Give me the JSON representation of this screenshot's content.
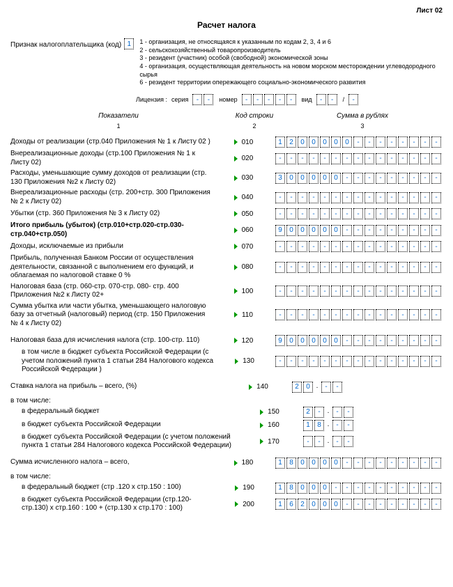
{
  "sheet_label": "Лист 02",
  "title": "Расчет налога",
  "taxpayer_label": "Признак налогоплательщика (код)",
  "taxpayer_code": "1",
  "legend": [
    "1 - организация, не относящаяся к указанным по кодам 2, 3, 4 и 6",
    "2 - сельскохозяйственный товаропроизводитель",
    "3 - резидент (участник) особой (свободной) экономической зоны",
    "4 - организация, осуществляющая деятельность на новом морском месторождении углеводородного сырья",
    "6 - резидент территории опережающего социально-экономического развития"
  ],
  "license": {
    "label": "Лицензия :",
    "series": "серия",
    "number": "номер",
    "kind": "вид"
  },
  "col_headers": {
    "c1": "Показатели",
    "c2": "Код строки",
    "c3": "Сумма в рублях"
  },
  "col_nums": {
    "c1": "1",
    "c2": "2",
    "c3": "3"
  },
  "rows": [
    {
      "label": "Доходы от реализации (стр.040 Приложения № 1 к Листу 02 )",
      "code": "010",
      "value": "1200000",
      "cells": 15
    },
    {
      "label": "Внереализационные доходы (стр.100 Приложения № 1 к Листу 02)",
      "code": "020",
      "value": "",
      "cells": 15
    },
    {
      "label": "Расходы, уменьшающие сумму доходов от реализации (стр. 130 Приложения №2 к Листу 02)",
      "code": "030",
      "value": "300000",
      "cells": 15
    },
    {
      "label": "Внереализационные расходы (стр. 200+стр. 300 Приложения № 2 к Листу 02)",
      "code": "040",
      "value": "",
      "cells": 15
    },
    {
      "label": "Убытки (стр. 360 Приложения № 3 к Листу 02)",
      "code": "050",
      "value": "",
      "cells": 15
    },
    {
      "label": "Итого прибыль (убыток) (стр.010+стр.020-стр.030-стр.040+стр.050)",
      "code": "060",
      "value": "900000",
      "cells": 15,
      "bold": true
    },
    {
      "label": "Доходы, исключаемые из прибыли",
      "code": "070",
      "value": "",
      "cells": 15
    },
    {
      "label": "Прибыль, полученная Банком России от осуществления деятельности, связанной с выполнением его функций, и облагаемая по налоговой ставке 0 %",
      "code": "080",
      "value": "",
      "cells": 15
    },
    {
      "label": "Налоговая база (стр. 060-стр. 070-стр. 080- стр. 400 Приложения №2 к Листу 02+",
      "code": "100",
      "value": "",
      "cells": 15
    },
    {
      "label": "Сумма убытка или части убытка, уменьшающего налоговую базу за отчетный (налоговый) период (стр. 150 Приложения № 4 к Листу 02)",
      "code": "110",
      "value": "",
      "cells": 15
    },
    {
      "label": "Налоговая база для исчисления налога (стр. 100-стр. 110)",
      "code": "120",
      "value": "900000",
      "cells": 15,
      "mt": true
    },
    {
      "label": "в том числе в бюджет субъекта Российской Федерации (с учетом положений пункта 1 статьи 284 Налогового кодекса Российской Федерации )",
      "code": "130",
      "value": "",
      "cells": 15,
      "indent": true
    },
    {
      "label": "Ставка налога на прибыль – всего, (%)",
      "code": "140",
      "value": "20",
      "cells": 2,
      "dec": true,
      "mt": true
    }
  ],
  "including": "в том числе:",
  "rows2": [
    {
      "label": "в федеральный бюджет",
      "code": "150",
      "value": "2",
      "cells": 2,
      "dec": true,
      "indent": true
    },
    {
      "label": "в бюджет субъекта Российской Федерации",
      "code": "160",
      "value": "18",
      "cells": 2,
      "dec": true,
      "indent": true
    },
    {
      "label": "в бюджет субъекта Российской Федерации (с учетом положений пункта 1 статьи 284 Налогового кодекса Российской Федерации)",
      "code": "170",
      "value": "",
      "cells": 2,
      "dec": true,
      "indent": true
    },
    {
      "label": "Сумма исчисленного налога  – всего,",
      "code": "180",
      "value": "180000",
      "cells": 15,
      "mt": true
    }
  ],
  "including2": "в том числе:",
  "rows3": [
    {
      "label": "в федеральный бюджет (стр .120 х стр.150 : 100)",
      "code": "190",
      "value": "18000",
      "cells": 15,
      "indent": true
    },
    {
      "label": "в бюджет субъекта Российской Федерации (стр.120-стр.130) х стр.160 : 100 + (стр.130 х стр.170 : 100)",
      "code": "200",
      "value": "162000",
      "cells": 15,
      "indent": true
    }
  ]
}
